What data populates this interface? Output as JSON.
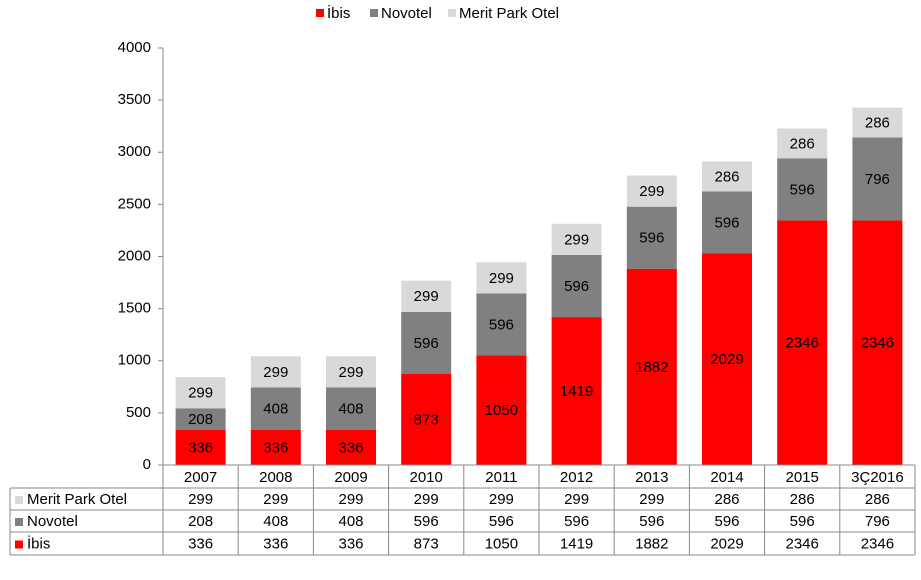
{
  "chart_data": {
    "type": "stacked-bar",
    "categories": [
      "2007",
      "2008",
      "2009",
      "2010",
      "2011",
      "2012",
      "2013",
      "2014",
      "2015",
      "3Ç2016"
    ],
    "series": [
      {
        "name": "İbis",
        "color": "#ff0000",
        "values": [
          336,
          336,
          336,
          873,
          1050,
          1419,
          1882,
          2029,
          2346,
          2346
        ]
      },
      {
        "name": "Novotel",
        "color": "#808080",
        "values": [
          208,
          408,
          408,
          596,
          596,
          596,
          596,
          596,
          596,
          796
        ]
      },
      {
        "name": "Merit Park Otel",
        "color": "#d9d9d9",
        "values": [
          299,
          299,
          299,
          299,
          299,
          299,
          299,
          286,
          286,
          286
        ]
      }
    ],
    "ylim": [
      0,
      4000
    ],
    "yticks": [
      0,
      500,
      1000,
      1500,
      2000,
      2500,
      3000,
      3500,
      4000
    ],
    "legend": "top",
    "data_table": true
  }
}
